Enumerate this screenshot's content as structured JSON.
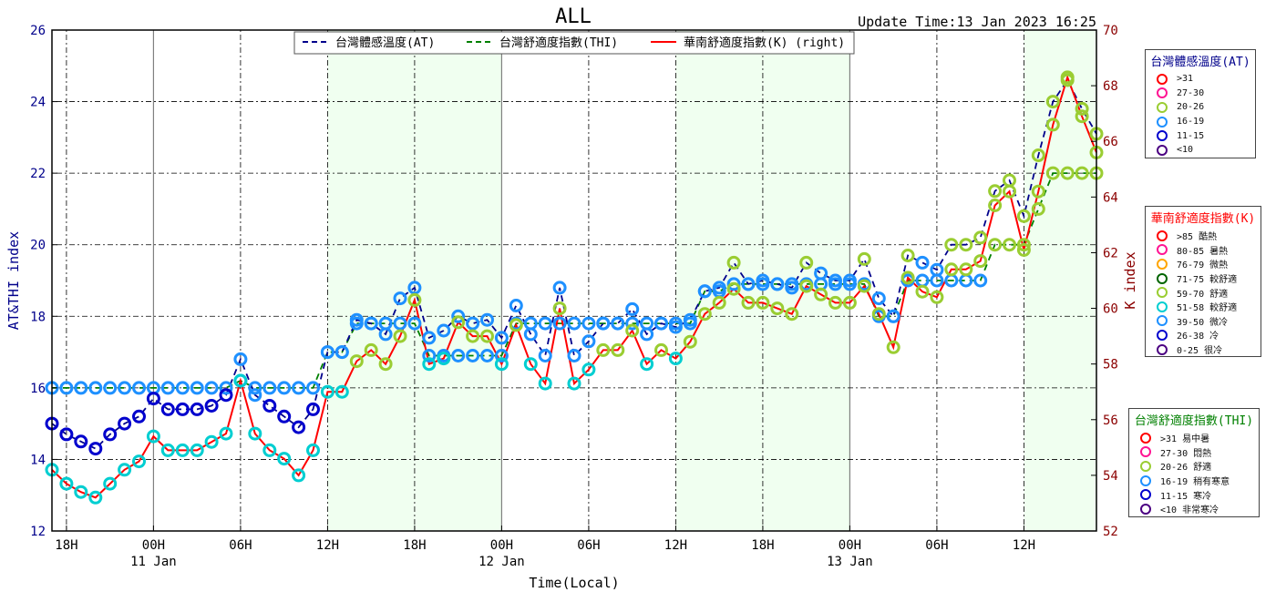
{
  "chart_data": {
    "type": "line",
    "title": "ALL",
    "update_time": "Update Time:13 Jan 2023 16:25",
    "xlabel": "Time(Local)",
    "ylabel_left": "AT&THI index",
    "ylabel_right": "K index",
    "ylim_left": [
      12,
      26
    ],
    "ylim_right": [
      52,
      70
    ],
    "yticks_left": [
      "12",
      "14",
      "16",
      "18",
      "20",
      "22",
      "24",
      "26"
    ],
    "yticks_right": [
      "52",
      "54",
      "56",
      "58",
      "60",
      "62",
      "64",
      "66",
      "68",
      "70"
    ],
    "x_range_hours": [
      -7,
      65
    ],
    "x_ticks": [
      {
        "h": -6,
        "label": "18H",
        "date": ""
      },
      {
        "h": 0,
        "label": "00H",
        "date": "11 Jan"
      },
      {
        "h": 6,
        "label": "06H",
        "date": ""
      },
      {
        "h": 12,
        "label": "12H",
        "date": ""
      },
      {
        "h": 18,
        "label": "18H",
        "date": ""
      },
      {
        "h": 24,
        "label": "00H",
        "date": "12 Jan"
      },
      {
        "h": 30,
        "label": "06H",
        "date": ""
      },
      {
        "h": 36,
        "label": "12H",
        "date": ""
      },
      {
        "h": 42,
        "label": "18H",
        "date": ""
      },
      {
        "h": 48,
        "label": "00H",
        "date": "13 Jan"
      },
      {
        "h": 54,
        "label": "06H",
        "date": ""
      },
      {
        "h": 60,
        "label": "12H",
        "date": ""
      }
    ],
    "daytime_shading": [
      [
        12,
        24
      ],
      [
        36,
        48
      ],
      [
        60,
        65
      ]
    ],
    "series": [
      {
        "name": "台灣體感溫度(AT)",
        "axis": "left",
        "style": "dashed",
        "color": "#00008b",
        "x_start": -7,
        "step": 1,
        "values": [
          15.0,
          14.7,
          14.5,
          14.3,
          14.7,
          15.0,
          15.2,
          15.7,
          15.4,
          15.4,
          15.4,
          15.5,
          15.8,
          16.8,
          15.8,
          15.5,
          15.2,
          14.9,
          15.4,
          17.0,
          17.0,
          17.9,
          17.8,
          17.5,
          18.5,
          18.8,
          17.4,
          17.6,
          18.0,
          17.8,
          17.9,
          17.4,
          18.3,
          17.5,
          16.9,
          18.8,
          16.9,
          17.3,
          17.8,
          17.8,
          18.2,
          17.5,
          17.8,
          17.7,
          17.9,
          18.7,
          18.8,
          19.5,
          18.9,
          19.0,
          18.9,
          18.8,
          19.5,
          19.2,
          19.0,
          19.0,
          19.6,
          18.5,
          18.0,
          19.7,
          19.5,
          19.3,
          20.0,
          20.0,
          20.2,
          21.5,
          21.8,
          20.8,
          22.5,
          24.0,
          24.6,
          23.8,
          23.1
        ]
      },
      {
        "name": "台灣舒適度指數(THI)",
        "axis": "left",
        "style": "dashed",
        "color": "#008000",
        "x_start": -7,
        "step": 1,
        "values": [
          16.0,
          16.0,
          16.0,
          16.0,
          16.0,
          16.0,
          16.0,
          16.0,
          16.0,
          16.0,
          16.0,
          16.0,
          16.0,
          16.2,
          16.0,
          16.0,
          16.0,
          16.0,
          16.0,
          17.0,
          17.0,
          17.8,
          17.8,
          17.8,
          17.8,
          17.8,
          16.9,
          16.9,
          16.9,
          16.9,
          16.9,
          16.9,
          17.8,
          17.8,
          17.8,
          17.8,
          17.8,
          17.8,
          17.8,
          17.8,
          17.8,
          17.8,
          17.8,
          17.8,
          17.8,
          18.7,
          18.7,
          18.9,
          18.9,
          18.9,
          18.9,
          18.9,
          18.9,
          18.9,
          18.9,
          18.9,
          18.9,
          18.0,
          18.0,
          19.0,
          19.0,
          19.0,
          19.0,
          19.0,
          19.0,
          20.0,
          20.0,
          20.0,
          21.0,
          22.0,
          22.0,
          22.0,
          22.0
        ]
      },
      {
        "name": "華南舒適度指數(K) (right)",
        "axis": "right",
        "style": "solid",
        "color": "#ff0000",
        "x_start": -7,
        "step": 1,
        "values": [
          54.2,
          53.7,
          53.4,
          53.2,
          53.7,
          54.2,
          54.5,
          55.4,
          54.9,
          54.9,
          54.9,
          55.2,
          55.5,
          57.4,
          55.5,
          54.9,
          54.6,
          54.0,
          54.9,
          57.0,
          57.0,
          58.1,
          58.5,
          58.0,
          59.0,
          60.3,
          58.0,
          58.2,
          59.5,
          59.0,
          59.0,
          58.0,
          59.4,
          58.0,
          57.3,
          60.0,
          57.3,
          57.8,
          58.5,
          58.5,
          59.2,
          58.0,
          58.5,
          58.2,
          58.8,
          59.8,
          60.2,
          60.7,
          60.2,
          60.2,
          60.0,
          59.8,
          60.8,
          60.5,
          60.2,
          60.2,
          60.8,
          59.8,
          58.6,
          61.1,
          60.6,
          60.4,
          61.4,
          61.4,
          61.7,
          63.7,
          64.2,
          62.1,
          64.2,
          66.6,
          68.3,
          66.9,
          65.6
        ]
      }
    ],
    "point_colors": {
      "at": [
        "#0000cd",
        "#0000cd",
        "#0000cd",
        "#0000cd",
        "#0000cd",
        "#0000cd",
        "#0000cd",
        "#0000cd",
        "#0000cd",
        "#0000cd",
        "#0000cd",
        "#0000cd",
        "#0000cd",
        "#1e90ff",
        "#1e90ff",
        "#0000cd",
        "#0000cd",
        "#0000cd",
        "#0000cd",
        "#1e90ff",
        "#1e90ff",
        "#1e90ff",
        "#1e90ff",
        "#1e90ff",
        "#1e90ff",
        "#1e90ff",
        "#1e90ff",
        "#1e90ff",
        "#1e90ff",
        "#1e90ff",
        "#1e90ff",
        "#1e90ff",
        "#1e90ff",
        "#1e90ff",
        "#1e90ff",
        "#1e90ff",
        "#1e90ff",
        "#1e90ff",
        "#1e90ff",
        "#1e90ff",
        "#1e90ff",
        "#1e90ff",
        "#1e90ff",
        "#1e90ff",
        "#1e90ff",
        "#1e90ff",
        "#1e90ff",
        "#9acd32",
        "#1e90ff",
        "#1e90ff",
        "#1e90ff",
        "#1e90ff",
        "#9acd32",
        "#1e90ff",
        "#1e90ff",
        "#1e90ff",
        "#9acd32",
        "#1e90ff",
        "#1e90ff",
        "#9acd32",
        "#1e90ff",
        "#1e90ff",
        "#9acd32",
        "#9acd32",
        "#9acd32",
        "#9acd32",
        "#9acd32",
        "#9acd32",
        "#9acd32",
        "#9acd32",
        "#9acd32",
        "#9acd32",
        "#9acd32"
      ],
      "thi": [
        "#1e90ff",
        "#1e90ff",
        "#1e90ff",
        "#1e90ff",
        "#1e90ff",
        "#1e90ff",
        "#1e90ff",
        "#1e90ff",
        "#1e90ff",
        "#1e90ff",
        "#1e90ff",
        "#1e90ff",
        "#1e90ff",
        "#1e90ff",
        "#1e90ff",
        "#1e90ff",
        "#1e90ff",
        "#1e90ff",
        "#1e90ff",
        "#1e90ff",
        "#1e90ff",
        "#1e90ff",
        "#1e90ff",
        "#1e90ff",
        "#1e90ff",
        "#1e90ff",
        "#1e90ff",
        "#1e90ff",
        "#1e90ff",
        "#1e90ff",
        "#1e90ff",
        "#1e90ff",
        "#1e90ff",
        "#1e90ff",
        "#1e90ff",
        "#1e90ff",
        "#1e90ff",
        "#1e90ff",
        "#1e90ff",
        "#1e90ff",
        "#1e90ff",
        "#1e90ff",
        "#1e90ff",
        "#1e90ff",
        "#1e90ff",
        "#1e90ff",
        "#1e90ff",
        "#1e90ff",
        "#1e90ff",
        "#1e90ff",
        "#1e90ff",
        "#1e90ff",
        "#1e90ff",
        "#1e90ff",
        "#1e90ff",
        "#1e90ff",
        "#1e90ff",
        "#1e90ff",
        "#1e90ff",
        "#1e90ff",
        "#1e90ff",
        "#1e90ff",
        "#1e90ff",
        "#1e90ff",
        "#1e90ff",
        "#9acd32",
        "#9acd32",
        "#9acd32",
        "#9acd32",
        "#9acd32",
        "#9acd32",
        "#9acd32",
        "#9acd32"
      ],
      "k": [
        "#00ced1",
        "#00ced1",
        "#00ced1",
        "#00ced1",
        "#00ced1",
        "#00ced1",
        "#00ced1",
        "#00ced1",
        "#00ced1",
        "#00ced1",
        "#00ced1",
        "#00ced1",
        "#00ced1",
        "#00ced1",
        "#00ced1",
        "#00ced1",
        "#00ced1",
        "#00ced1",
        "#00ced1",
        "#00ced1",
        "#00ced1",
        "#9acd32",
        "#9acd32",
        "#9acd32",
        "#9acd32",
        "#9acd32",
        "#00ced1",
        "#00ced1",
        "#9acd32",
        "#9acd32",
        "#9acd32",
        "#00ced1",
        "#9acd32",
        "#00ced1",
        "#00ced1",
        "#9acd32",
        "#00ced1",
        "#00ced1",
        "#9acd32",
        "#9acd32",
        "#9acd32",
        "#00ced1",
        "#9acd32",
        "#00ced1",
        "#9acd32",
        "#9acd32",
        "#9acd32",
        "#9acd32",
        "#9acd32",
        "#9acd32",
        "#9acd32",
        "#9acd32",
        "#9acd32",
        "#9acd32",
        "#9acd32",
        "#9acd32",
        "#9acd32",
        "#9acd32",
        "#9acd32",
        "#9acd32",
        "#9acd32",
        "#9acd32",
        "#9acd32",
        "#9acd32",
        "#9acd32",
        "#9acd32",
        "#9acd32",
        "#9acd32",
        "#9acd32",
        "#9acd32",
        "#9acd32",
        "#9acd32",
        "#9acd32"
      ]
    },
    "legend": {
      "placement": "top-center",
      "entries": [
        "台灣體感溫度(AT)",
        "台灣舒適度指數(THI)",
        "華南舒適度指數(K) (right)"
      ]
    }
  },
  "side_legends": {
    "at": {
      "title": "台灣體感溫度(AT)",
      "title_color": "#00008b",
      "items": [
        {
          "label": ">31",
          "color": "#ff0000"
        },
        {
          "label": "27-30",
          "color": "#ff1493"
        },
        {
          "label": "20-26",
          "color": "#9acd32"
        },
        {
          "label": "16-19",
          "color": "#1e90ff"
        },
        {
          "label": "11-15",
          "color": "#0000cd"
        },
        {
          "label": "<10",
          "color": "#4b0082"
        }
      ]
    },
    "k": {
      "title": "華南舒適度指數(K)",
      "title_color": "#ff0000",
      "items": [
        {
          "label": ">85 酷熱",
          "color": "#ff0000"
        },
        {
          "label": "80-85 暑熱",
          "color": "#ff1493"
        },
        {
          "label": "76-79 微熱",
          "color": "#ffa500"
        },
        {
          "label": "71-75 較舒適",
          "color": "#006400"
        },
        {
          "label": "59-70 舒適",
          "color": "#9acd32"
        },
        {
          "label": "51-58 較舒適",
          "color": "#00ced1"
        },
        {
          "label": "39-50 微冷",
          "color": "#1e90ff"
        },
        {
          "label": "26-38 冷",
          "color": "#0000cd"
        },
        {
          "label": "0-25 很冷",
          "color": "#4b0082"
        }
      ]
    },
    "thi": {
      "title": "台灣舒適度指數(THI)",
      "title_color": "#008000",
      "items": [
        {
          "label": ">31 易中暑",
          "color": "#ff0000"
        },
        {
          "label": "27-30 悶熱",
          "color": "#ff1493"
        },
        {
          "label": "20-26 舒適",
          "color": "#9acd32"
        },
        {
          "label": "16-19 稍有寒意",
          "color": "#1e90ff"
        },
        {
          "label": "11-15 寒冷",
          "color": "#0000cd"
        },
        {
          "label": "<10 非常寒冷",
          "color": "#4b0082"
        }
      ]
    }
  }
}
